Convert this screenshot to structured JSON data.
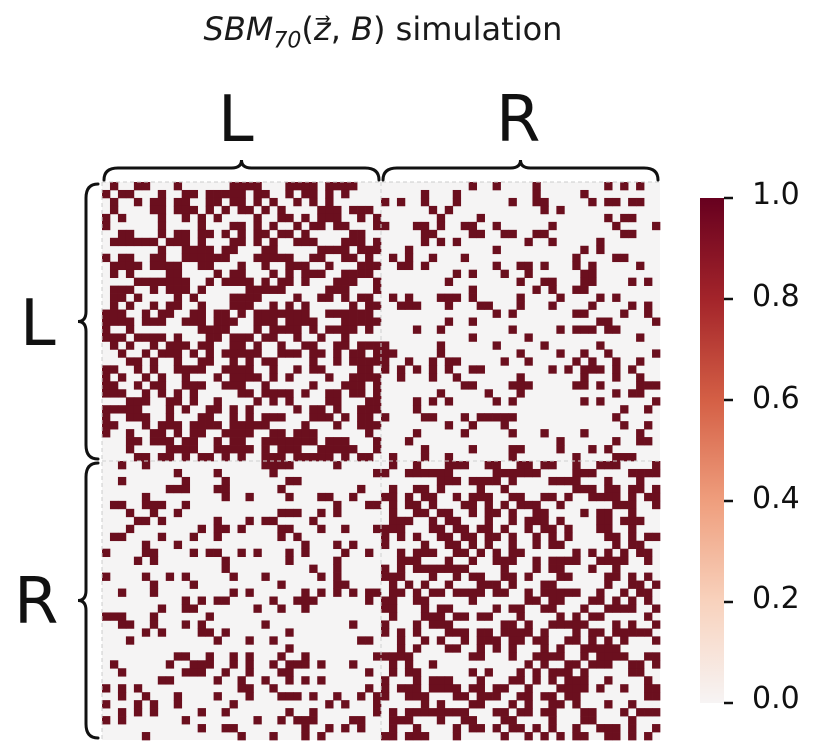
{
  "chart_data": {
    "type": "heatmap",
    "title": {
      "base": "SBM",
      "subscript": "70",
      "args_open": "(",
      "vector": "z",
      "vector_arrow": "⃗",
      "separator": ", ",
      "matrix": "B",
      "args_close": ")",
      "suffix": " simulation"
    },
    "n_nodes": 70,
    "communities": [
      {
        "label": "L",
        "start": 0,
        "end": 35
      },
      {
        "label": "R",
        "start": 35,
        "end": 70
      }
    ],
    "block_probabilities": [
      [
        0.5,
        0.2
      ],
      [
        0.2,
        0.5
      ]
    ],
    "value_range": [
      0.0,
      1.0
    ],
    "colorbar": {
      "ticks": [
        "0.0",
        "0.2",
        "0.4",
        "0.6",
        "0.8",
        "1.0"
      ],
      "tick_values": [
        0.0,
        0.2,
        0.4,
        0.6,
        0.8,
        1.0
      ],
      "colors": [
        "#f7f4f4",
        "#f8d2bd",
        "#ef9e7d",
        "#d45f45",
        "#a3242a",
        "#67001f"
      ]
    },
    "cell_colors": {
      "edge": "#6b0f1e",
      "no_edge": "#f5f4f4"
    },
    "brace_color": "#111111",
    "seed": 70
  }
}
